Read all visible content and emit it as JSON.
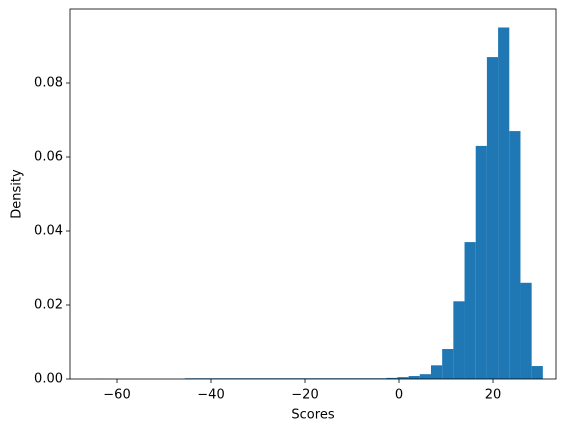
{
  "chart_data": {
    "type": "histogram",
    "x_label": "Scores",
    "y_label": "Density",
    "color": "#1f77b4",
    "bins": [
      -64.6,
      -62.22,
      -59.84,
      -57.46,
      -55.08,
      -52.7,
      -50.32,
      -47.94,
      -45.56,
      -43.18,
      -40.8,
      -38.42,
      -36.04,
      -33.66,
      -31.28,
      -28.9,
      -26.52,
      -24.14,
      -21.76,
      -19.38,
      -17.0,
      -14.62,
      -12.24,
      -9.86,
      -7.48,
      -5.1,
      -2.72,
      -0.34,
      2.04,
      4.42,
      6.8,
      9.18,
      11.56,
      13.94,
      16.32,
      18.7,
      21.08,
      23.46,
      25.84,
      28.22,
      30.6
    ],
    "values": [
      4e-05,
      0,
      0,
      0,
      0,
      0,
      0,
      0,
      0.0002,
      0.0002,
      0.0002,
      0.0002,
      0.0002,
      0.0002,
      0.0002,
      0.0002,
      0.0002,
      0.0002,
      0.0002,
      0.0002,
      0.0002,
      0.0002,
      0.0002,
      0.0002,
      0.0002,
      0.0002,
      0.0003,
      0.0005,
      0.0008,
      0.0013,
      0.0037,
      0.0081,
      0.021,
      0.037,
      0.063,
      0.087,
      0.095,
      0.067,
      0.026,
      0.0035
    ],
    "xlim": [
      -70,
      33.4
    ],
    "xticks": [
      {
        "value": -60,
        "label": "−60"
      },
      {
        "value": -40,
        "label": "−40"
      },
      {
        "value": -20,
        "label": "−20"
      },
      0,
      20
    ],
    "ylim": [
      0,
      0.1
    ],
    "yticks": [
      {
        "value": 0,
        "label": "0.00"
      },
      0.02,
      0.04,
      0.06,
      0.08
    ],
    "grid": false
  }
}
